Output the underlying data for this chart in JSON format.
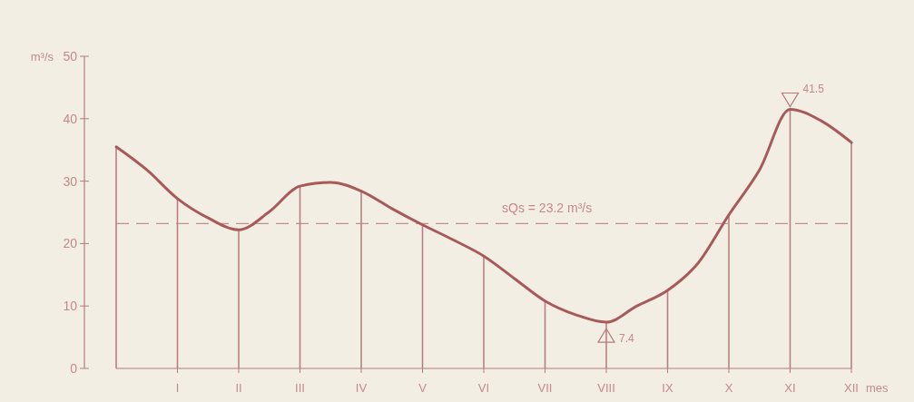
{
  "chart_data": {
    "type": "line",
    "xlabel": "mes",
    "ylabel": "m³/s",
    "ylim": [
      0,
      50
    ],
    "categories": [
      null,
      null,
      "I",
      null,
      "II",
      null,
      "III",
      null,
      "IV",
      null,
      "V",
      null,
      "VI",
      null,
      "VII",
      null,
      "VIII",
      null,
      "IX",
      null,
      "X",
      null,
      "XI",
      null,
      "XII"
    ],
    "yticks": [
      0,
      10,
      20,
      30,
      40,
      50
    ],
    "grid": false,
    "marker": "none",
    "line_style": "solid",
    "series": [
      {
        "color": "#a85a5a",
        "values": [
          35.5,
          31.8,
          27.2,
          24.1,
          22.2,
          25.1,
          29.2,
          29.8,
          28.4,
          25.6,
          23.0,
          20.6,
          18.0,
          14.4,
          10.8,
          8.6,
          7.4,
          10.0,
          12.5,
          16.9,
          24.6,
          31.8,
          41.5,
          39.7,
          36.2
        ]
      },
      {
        "type": "bar",
        "color": "#b88080",
        "values": [
          35.5,
          null,
          27.2,
          null,
          22.2,
          null,
          29.2,
          null,
          28.4,
          null,
          23.0,
          null,
          18.0,
          null,
          10.8,
          null,
          7.4,
          null,
          12.5,
          null,
          24.6,
          null,
          41.5,
          null,
          36.2
        ]
      }
    ],
    "ref_lines": [
      {
        "axis": "y",
        "value": 23.2,
        "label": "sQs = 23.2 m³/s",
        "line_style": "dashed",
        "color": "#c09090"
      }
    ],
    "annotations": [
      {
        "text": "41.5",
        "x": "XI",
        "y": 41.5
      },
      {
        "text": "7.4",
        "x": "VIII",
        "y": 7.4
      }
    ]
  }
}
